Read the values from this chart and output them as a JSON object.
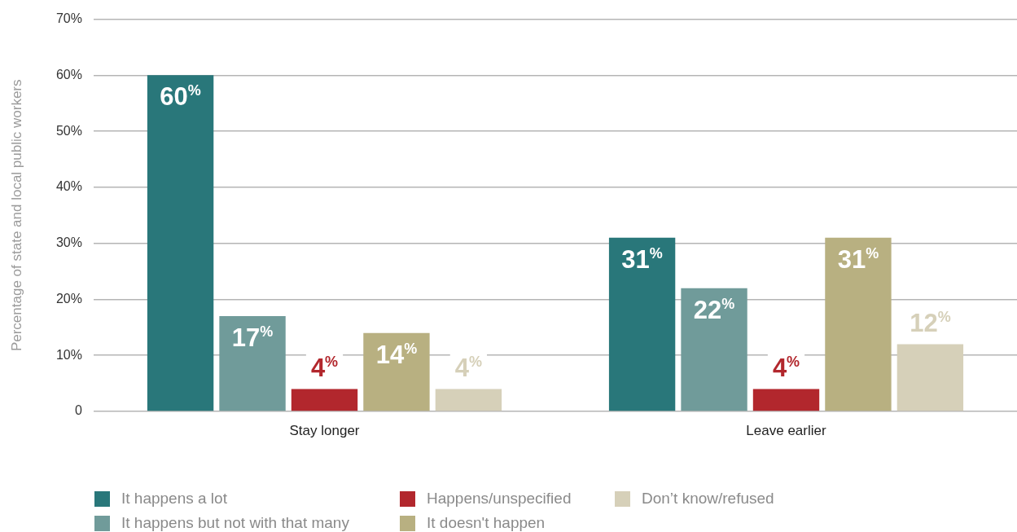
{
  "chart_data": {
    "type": "bar",
    "ylabel": "Percentage of state and local public workers",
    "categories": [
      "Stay longer",
      "Leave earlier"
    ],
    "series": [
      {
        "name": "It happens a lot",
        "color": "#29777a",
        "values": [
          60,
          31
        ],
        "value_labels": [
          "60$^{%}$",
          "31$^{%}$"
        ]
      },
      {
        "name": "It happens but not with that many",
        "color": "#709b9a",
        "values": [
          17,
          22
        ],
        "value_labels": [
          "17$^{%}$",
          "22$^{%}$"
        ]
      },
      {
        "name": "Happens/unspecified",
        "color": "#b2272d",
        "values": [
          4,
          4
        ],
        "value_labels": [
          "4$^{%}$",
          "4$^{%}$"
        ]
      },
      {
        "name": "It doesn't happen",
        "color": "#b8b081",
        "values": [
          14,
          31
        ],
        "value_labels": [
          "14$^{%}$",
          "31$^{%}$"
        ]
      },
      {
        "name": "Don’t know/refused",
        "color": "#d6d0b9",
        "values": [
          4,
          12
        ],
        "value_labels": [
          "4$^{%}$",
          "12$^{%}$"
        ]
      }
    ],
    "ylim": [
      0,
      70
    ],
    "yticks": [
      {
        "value": 0,
        "label": "0"
      },
      {
        "value": 10,
        "label": "10%"
      },
      {
        "value": 20,
        "label": "20%"
      },
      {
        "value": 30,
        "label": "30%"
      },
      {
        "value": 40,
        "label": "40%"
      },
      {
        "value": 50,
        "label": "50%"
      },
      {
        "value": 60,
        "label": "60%"
      },
      {
        "value": 70,
        "label": "70%"
      }
    ],
    "grid": "y",
    "legend": "bottom"
  }
}
